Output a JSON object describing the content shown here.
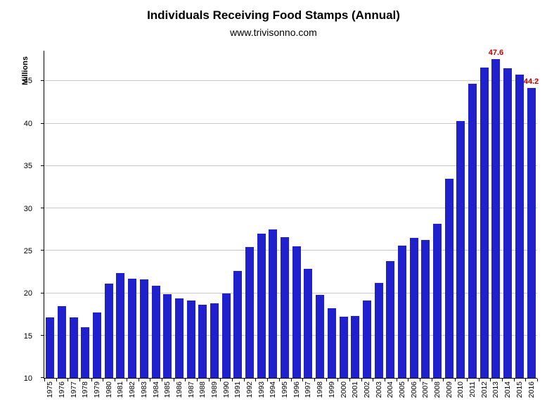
{
  "chart_data": {
    "type": "bar",
    "title": "Individuals Receiving Food Stamps (Annual)",
    "subtitle": "www.trivisonno.com",
    "ylabel": "Millions",
    "xlabel": "",
    "ymin": 10,
    "ymax": 48.6,
    "yticks": [
      10,
      15,
      20,
      25,
      30,
      35,
      40,
      45
    ],
    "grid": true,
    "bar_color": "#2020cd",
    "annotation_color": "#c00000",
    "categories": [
      1975,
      1976,
      1977,
      1978,
      1979,
      1980,
      1981,
      1982,
      1983,
      1984,
      1985,
      1986,
      1987,
      1988,
      1989,
      1990,
      1991,
      1992,
      1993,
      1994,
      1995,
      1996,
      1997,
      1998,
      1999,
      2000,
      2001,
      2002,
      2003,
      2004,
      2005,
      2006,
      2007,
      2008,
      2009,
      2010,
      2011,
      2012,
      2013,
      2014,
      2015,
      2016
    ],
    "values": [
      17.1,
      18.5,
      17.1,
      16.0,
      17.7,
      21.1,
      22.4,
      21.7,
      21.6,
      20.9,
      19.9,
      19.4,
      19.1,
      18.6,
      18.8,
      20.0,
      22.6,
      25.4,
      27.0,
      27.5,
      26.6,
      25.5,
      22.9,
      19.8,
      18.2,
      17.2,
      17.3,
      19.1,
      21.2,
      23.8,
      25.6,
      26.5,
      26.3,
      28.2,
      33.5,
      40.3,
      44.7,
      46.6,
      47.6,
      46.5,
      45.8,
      44.2
    ],
    "annotations": [
      {
        "year": 2013,
        "label": "47.6"
      },
      {
        "year": 2016,
        "label": "44.2"
      }
    ]
  }
}
